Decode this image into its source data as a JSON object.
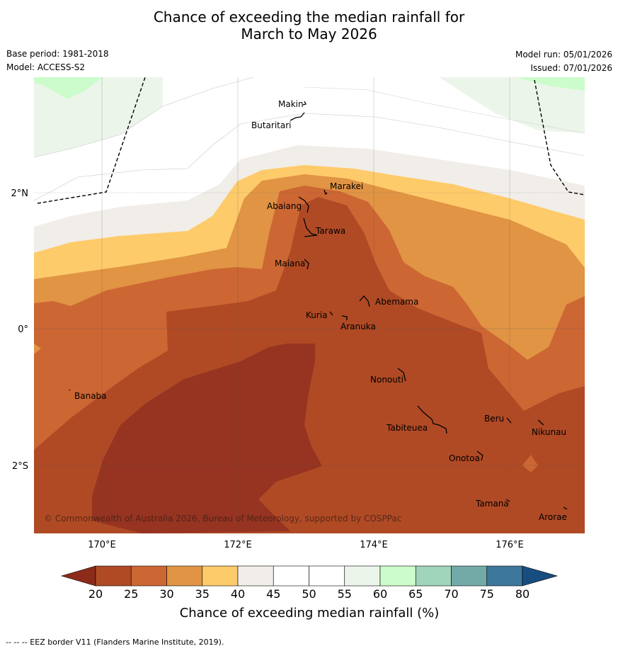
{
  "title": {
    "line1": "Chance of exceeding the median rainfall for",
    "line2": "March to May 2026"
  },
  "meta": {
    "base_period": "Base period: 1981-2018",
    "model": "Model: ACCESS-S2",
    "model_run": "Model run: 05/01/2026",
    "issued": "Issued: 07/01/2026"
  },
  "axes": {
    "lon_labels": [
      "170°E",
      "172°E",
      "174°E",
      "176°E"
    ],
    "lat_labels": [
      "2°N",
      "0°",
      "2°S"
    ]
  },
  "places": [
    "Makin",
    "Butaritari",
    "Marakei",
    "Abaiang",
    "Tarawa",
    "Maiana",
    "Abemama",
    "Kuria",
    "Aranuka",
    "Nonouti",
    "Banaba",
    "Beru",
    "Tabiteuea",
    "Nikunau",
    "Onotoa",
    "Tamana",
    "Arorae"
  ],
  "copyright": "© Commonwealth of Australia 2026, Bureau of Meteorology, supported by COSPPac",
  "legend": {
    "label": "Chance of exceeding median rainfall (%)",
    "ticks": [
      "20",
      "25",
      "30",
      "35",
      "40",
      "45",
      "50",
      "55",
      "60",
      "65",
      "70",
      "75",
      "80"
    ],
    "colors": [
      "#8c2b1a",
      "#b04a25",
      "#cc6633",
      "#e09444",
      "#fecb6a",
      "#f1ede8",
      "#ffffff",
      "#ffffff",
      "#ecf5ea",
      "#ccfccb",
      "#a0d4bb",
      "#72aaa8",
      "#3d779b",
      "#184d80"
    ]
  },
  "footnote": "--  --  -- EEZ border V11 (Flanders Marine Institute, 2019)."
}
